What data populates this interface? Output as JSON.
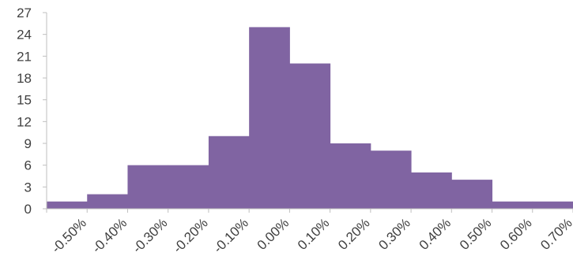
{
  "chart_data": {
    "type": "bar",
    "title": "",
    "xlabel": "",
    "ylabel": "",
    "ylim": [
      0,
      27
    ],
    "yticks": [
      "0",
      "3",
      "6",
      "9",
      "12",
      "15",
      "18",
      "21",
      "24",
      "27"
    ],
    "xticks": [
      "-0.50%",
      "-0.40%",
      "-0.30%",
      "-0.20%",
      "-0.10%",
      "0.00%",
      "0.10%",
      "0.20%",
      "0.30%",
      "0.40%",
      "0.50%",
      "0.60%",
      "0.70%"
    ],
    "categories": [
      "-0.50%",
      "-0.40%",
      "-0.30%",
      "-0.20%",
      "-0.10%",
      "0.00%",
      "0.10%",
      "0.20%",
      "0.30%",
      "0.40%",
      "0.50%",
      "0.60%",
      "0.70%"
    ],
    "values": [
      1,
      2,
      6,
      6,
      10,
      25,
      20,
      9,
      8,
      5,
      4,
      1,
      1
    ],
    "bar_color": "#8064a2",
    "grid": false,
    "legend": "none"
  }
}
